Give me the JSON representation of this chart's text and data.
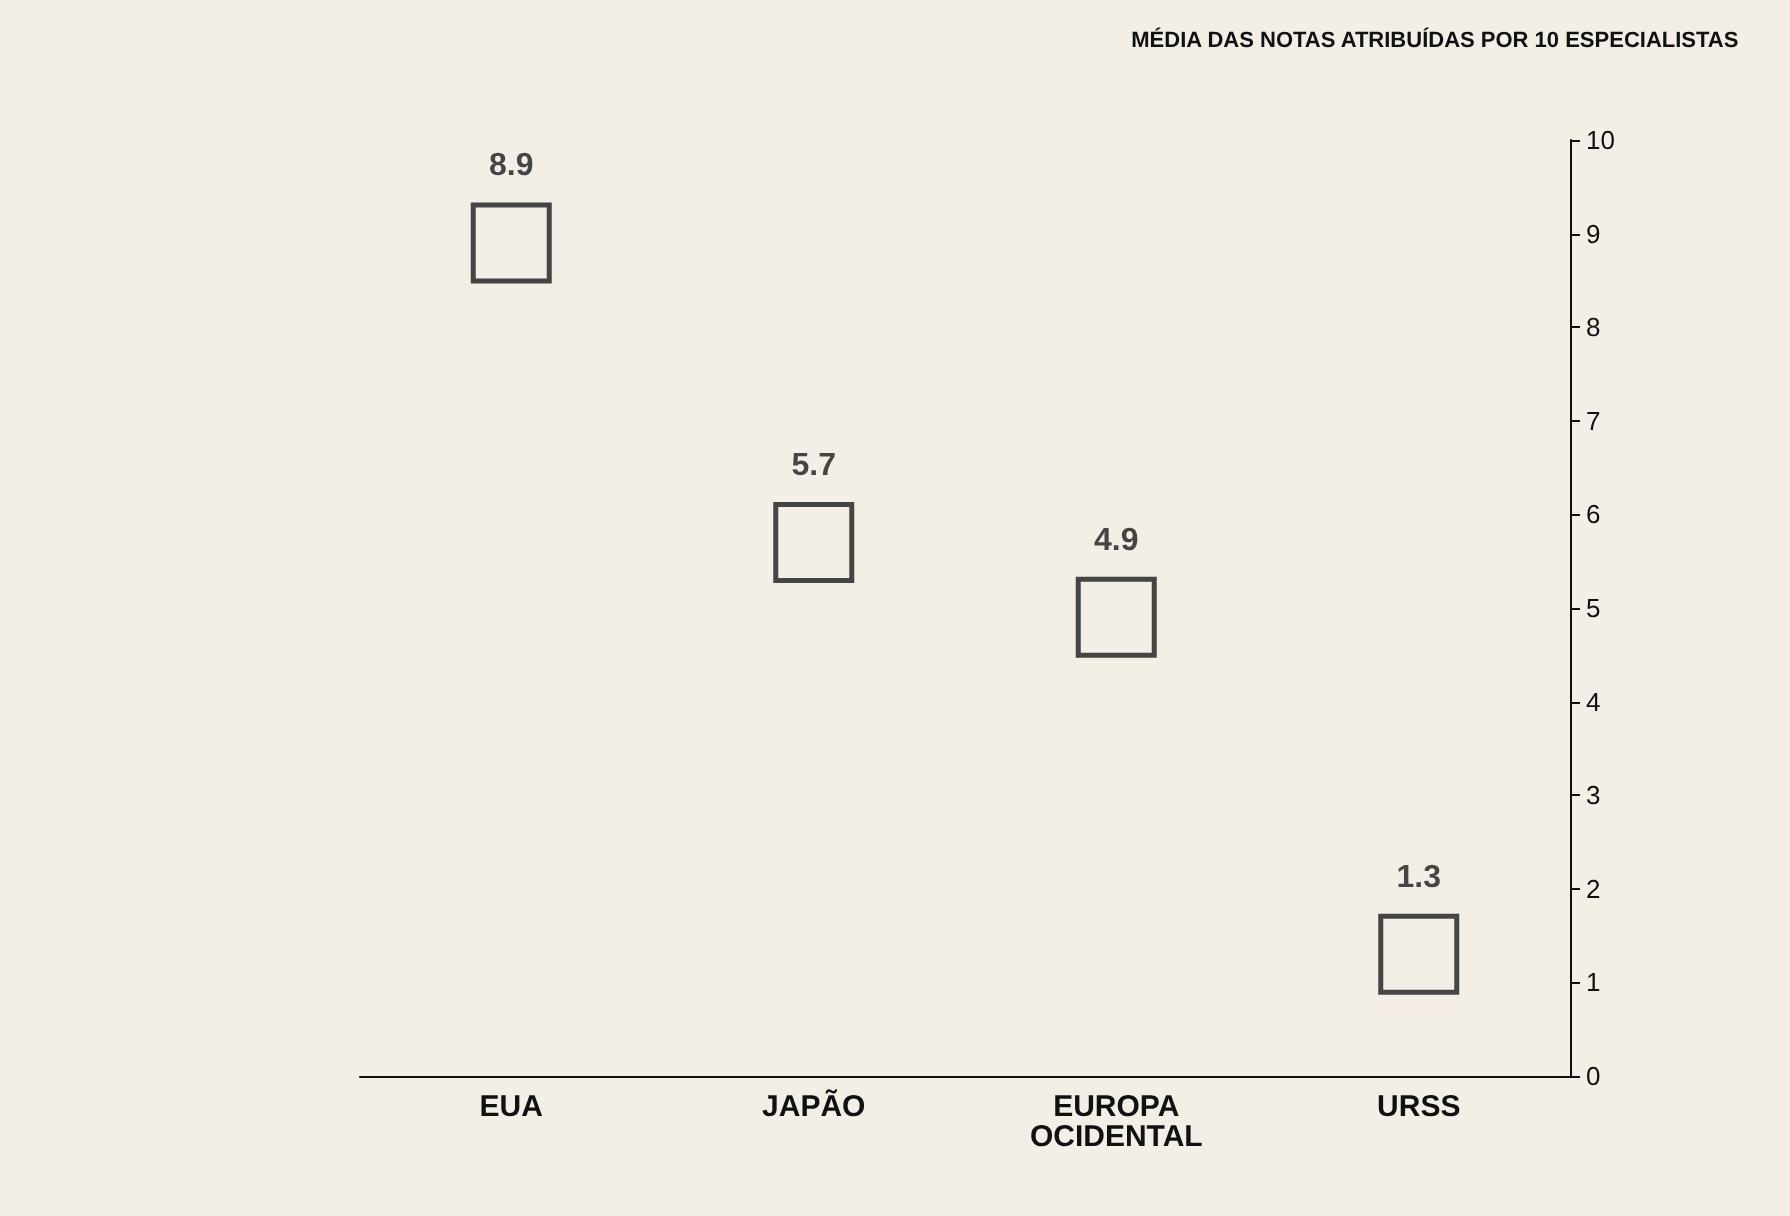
{
  "chart_data": {
    "type": "scatter",
    "title": "MÉDIA DAS NOTAS ATRIBUÍDAS POR 10 ESPECIALISTAS",
    "categories": [
      "EUA",
      "JAPÃO",
      "EUROPA OCIDENTAL",
      "URSS"
    ],
    "series": [
      {
        "color": "#1a1a1a",
        "values": [
          8.9,
          5.7,
          4.9,
          1.3
        ]
      }
    ],
    "ylim": [
      0,
      10
    ],
    "yticks": [
      0,
      1,
      2,
      3,
      4,
      5,
      6,
      7,
      8,
      9,
      10
    ],
    "marker": "square",
    "data_labels": true
  }
}
